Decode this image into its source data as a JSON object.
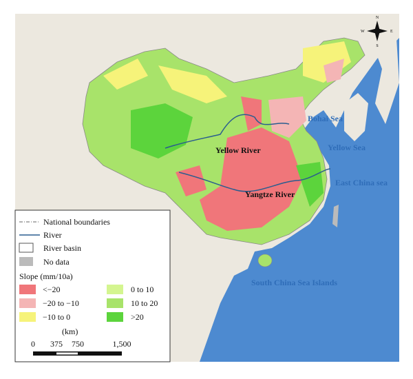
{
  "map": {
    "compass": [
      "N",
      "S",
      "E",
      "W"
    ],
    "places": [
      "Bohai Sea",
      "Yellow Sea",
      "East China sea",
      "Yellow River",
      "Yangtze River",
      "South China Sea Islands"
    ]
  },
  "legend": {
    "items": [
      "National boundaries",
      "River",
      "River basin",
      "No data"
    ],
    "slope_title": "Slope (mm/10a)",
    "classes": [
      "<−20",
      "−20 to −10",
      "−10 to 0",
      "0 to 10",
      "10 to 20",
      ">20"
    ],
    "scale_unit": "(km)",
    "scale_ticks": [
      "0",
      "375",
      "750",
      "1,500"
    ]
  }
}
